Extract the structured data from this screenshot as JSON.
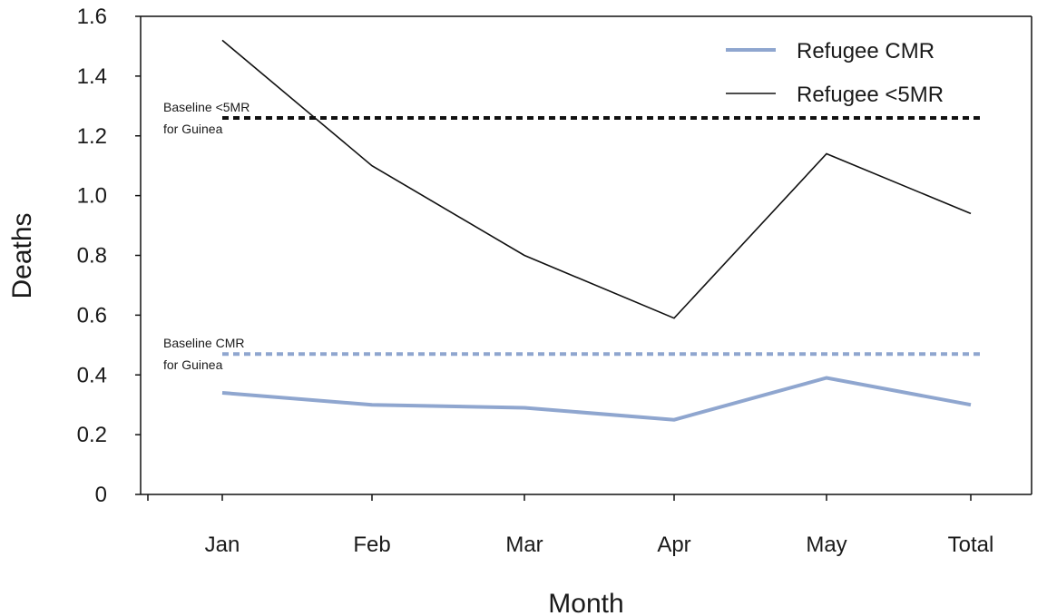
{
  "chart_data": {
    "type": "line",
    "title": "",
    "xlabel": "Month",
    "ylabel": "Deaths",
    "categories": [
      "Jan",
      "Feb",
      "Mar",
      "Apr",
      "May",
      "Total"
    ],
    "ylim": [
      0,
      1.6
    ],
    "yticks": [
      0,
      0.2,
      0.4,
      0.6,
      0.8,
      1.0,
      1.2,
      1.4,
      1.6
    ],
    "ytick_labels": [
      "0",
      "0.2",
      "0.4",
      "0.6",
      "0.8",
      "1.0",
      "1.2",
      "1.4",
      "1.6"
    ],
    "grid": false,
    "legend_position": "top-right",
    "series": [
      {
        "name": "Refugee CMR",
        "values": [
          0.34,
          0.3,
          0.29,
          0.25,
          0.39,
          0.3
        ],
        "color": "#8fa6cf"
      },
      {
        "name": "Refugee <5MR",
        "values": [
          1.52,
          1.1,
          0.8,
          0.59,
          1.14,
          0.94
        ],
        "color": "#111111"
      }
    ],
    "baselines": [
      {
        "label_line1": "Baseline <5MR",
        "label_line2": "for Guinea",
        "value": 1.26,
        "color": "#111111"
      },
      {
        "label_line1": "Baseline CMR",
        "label_line2": "for Guinea",
        "value": 0.47,
        "color": "#8fa6cf"
      }
    ]
  }
}
